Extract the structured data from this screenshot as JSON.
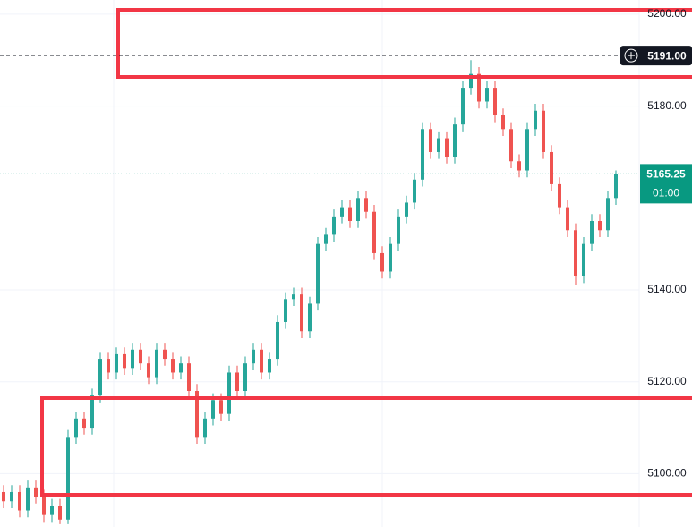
{
  "chart_data": {
    "type": "candlestick",
    "open": [
      5096,
      5094,
      5096,
      5092,
      5097,
      5095,
      5091,
      5093,
      5090,
      5108,
      5112,
      5110,
      5117,
      5125,
      5122,
      5126,
      5123,
      5127,
      5124,
      5121,
      5127,
      5125,
      5122,
      5124,
      5118,
      5108,
      5112,
      5116,
      5113,
      5122,
      5118,
      5124,
      5127,
      5122,
      5125,
      5133,
      5138,
      5139,
      5131,
      5137,
      5150,
      5152,
      5156,
      5158,
      5155,
      5160,
      5157,
      5148,
      5144,
      5150,
      5156,
      5159,
      5164,
      5175,
      5170,
      5173,
      5169,
      5176,
      5184,
      5187,
      5181,
      5184,
      5178,
      5175,
      5168,
      5166,
      5175,
      5179,
      5170,
      5163,
      5158,
      5153,
      5143,
      5150,
      5155,
      5153,
      5160
    ],
    "high": [
      5097.5,
      5097.5,
      5097.5,
      5098.5,
      5098.5,
      5096.5,
      5094.5,
      5094.5,
      5109.5,
      5113.5,
      5113.5,
      5118.5,
      5126.5,
      5126.5,
      5127.5,
      5127.5,
      5128.5,
      5128.5,
      5125.5,
      5128.5,
      5128.5,
      5126.5,
      5125.5,
      5125.5,
      5119.5,
      5113.5,
      5117.5,
      5117.5,
      5123.5,
      5123.5,
      5125.5,
      5128.5,
      5128.5,
      5126.5,
      5134.5,
      5139.5,
      5140.5,
      5140.5,
      5138.5,
      5151.5,
      5153.5,
      5157.5,
      5159.5,
      5159.5,
      5161.5,
      5161.5,
      5158.5,
      5149.5,
      5151.5,
      5157.5,
      5160.5,
      5165.5,
      5176.5,
      5176.5,
      5174.5,
      5174.5,
      5177.5,
      5185.5,
      5190,
      5188.5,
      5185.5,
      5185.5,
      5179.5,
      5176.5,
      5169.5,
      5176.5,
      5180.5,
      5180.5,
      5171.5,
      5164.5,
      5159.5,
      5154.5,
      5151.5,
      5156.5,
      5156.5,
      5161.5,
      5166
    ],
    "low": [
      5092.5,
      5092.5,
      5090.5,
      5090.5,
      5093.5,
      5089.5,
      5089.5,
      5089,
      5089,
      5106.5,
      5108.5,
      5108.5,
      5115.5,
      5120.5,
      5120.5,
      5121.5,
      5121.5,
      5122.5,
      5119.5,
      5119.5,
      5123.5,
      5120.5,
      5120.5,
      5116.5,
      5106.5,
      5106.5,
      5110.5,
      5111.5,
      5111.5,
      5116.5,
      5116.5,
      5122.5,
      5120.5,
      5120.5,
      5123.5,
      5131.5,
      5136.5,
      5129.5,
      5129.5,
      5135.5,
      5148.5,
      5150.5,
      5154.5,
      5153.5,
      5153.5,
      5155.5,
      5146.5,
      5142.5,
      5142.5,
      5148.5,
      5154.5,
      5157.5,
      5162.5,
      5168.5,
      5168.5,
      5167.5,
      5167.5,
      5174.5,
      5182.5,
      5179.5,
      5179.5,
      5176.5,
      5173.5,
      5166.5,
      5164.5,
      5164.5,
      5173.5,
      5168.5,
      5161.5,
      5156.5,
      5151.5,
      5141,
      5141.5,
      5148.5,
      5151.5,
      5151.5,
      5158.5
    ],
    "close": [
      5094,
      5096,
      5092,
      5097,
      5095,
      5091,
      5093,
      5090,
      5108,
      5112,
      5110,
      5117,
      5125,
      5122,
      5126,
      5123,
      5127,
      5124,
      5121,
      5127,
      5125,
      5122,
      5124,
      5118,
      5108,
      5112,
      5116,
      5113,
      5122,
      5118,
      5124,
      5127,
      5122,
      5125,
      5133,
      5138,
      5139,
      5131,
      5137,
      5150,
      5152,
      5156,
      5158,
      5155,
      5160,
      5157,
      5148,
      5144,
      5150,
      5156,
      5159,
      5164,
      5175,
      5170,
      5173,
      5169,
      5176,
      5184,
      5187,
      5181,
      5184,
      5178,
      5175,
      5168,
      5166,
      5175,
      5179,
      5170,
      5163,
      5158,
      5153,
      5143,
      5150,
      5155,
      5153,
      5160,
      5165.25
    ],
    "up_color": "#26a69a",
    "down_color": "#ef5350",
    "ylim": [
      5088.4,
      5203.1
    ],
    "yticks": [
      {
        "value": 5100,
        "label": "5100.00"
      },
      {
        "value": 5120,
        "label": "5120.00"
      },
      {
        "value": 5140,
        "label": "5140.00"
      },
      {
        "value": 5180,
        "label": "5180.00"
      },
      {
        "value": 5200,
        "label": "5200.00"
      }
    ],
    "grid": true,
    "last_price": 5165.25,
    "countdown": "01:00",
    "crosshair": {
      "value": 5191,
      "label": "5191.00"
    }
  }
}
